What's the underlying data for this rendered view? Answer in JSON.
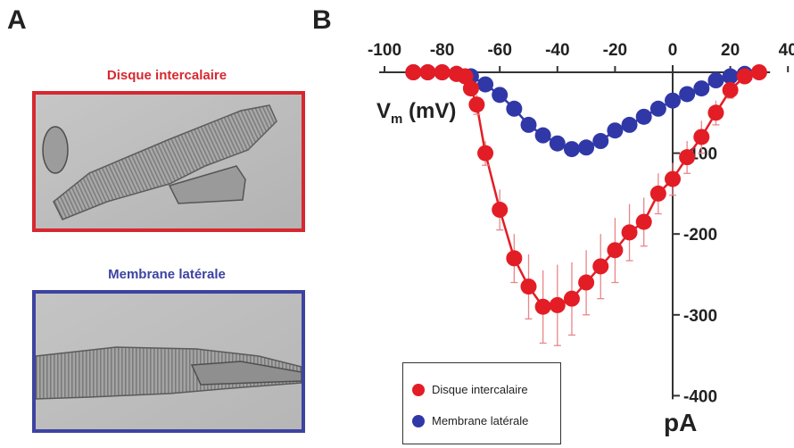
{
  "panels": {
    "a_letter": "A",
    "b_letter": "B"
  },
  "panel_a": {
    "top_caption": "Disque intercalaire",
    "bottom_caption": "Membrane latérale",
    "top_color": "#d7282f",
    "bottom_color": "#3d43a1"
  },
  "chart_data": {
    "type": "scatter",
    "x_tick_labels": [
      "-100",
      "-80",
      "-60",
      "-40",
      "-20",
      "0",
      "20",
      "40"
    ],
    "y_tick_labels": [
      "-100",
      "-200",
      "-300",
      "-400"
    ],
    "x_ticks": [
      -100,
      -80,
      -60,
      -40,
      -20,
      0,
      20,
      40
    ],
    "y_ticks": [
      -100,
      -200,
      -300,
      -400
    ],
    "xlabel_main": "V",
    "xlabel_sub": "m",
    "xlabel_unit": " (mV)",
    "ylabel": "pA",
    "xlim": [
      -100,
      40
    ],
    "ylim": [
      -400,
      0
    ],
    "series": [
      {
        "name": "Disque intercalaire",
        "color": "#e31d25",
        "points": [
          [
            -90,
            0
          ],
          [
            -85,
            0
          ],
          [
            -80,
            0
          ],
          [
            -75,
            -2
          ],
          [
            -72,
            -5
          ],
          [
            -70,
            -20
          ],
          [
            -68,
            -40
          ],
          [
            -65,
            -100
          ],
          [
            -60,
            -170
          ],
          [
            -55,
            -230
          ],
          [
            -50,
            -265
          ],
          [
            -45,
            -290
          ],
          [
            -40,
            -288
          ],
          [
            -35,
            -280
          ],
          [
            -30,
            -260
          ],
          [
            -25,
            -240
          ],
          [
            -20,
            -220
          ],
          [
            -15,
            -198
          ],
          [
            -10,
            -185
          ],
          [
            -5,
            -150
          ],
          [
            0,
            -132
          ],
          [
            5,
            -105
          ],
          [
            10,
            -80
          ],
          [
            15,
            -50
          ],
          [
            20,
            -22
          ],
          [
            25,
            -5
          ],
          [
            30,
            0
          ]
        ],
        "error": [
          0,
          0,
          0,
          2,
          3,
          6,
          12,
          15,
          25,
          30,
          40,
          45,
          50,
          45,
          40,
          40,
          40,
          35,
          30,
          25,
          20,
          20,
          20,
          15,
          10,
          5,
          3
        ]
      },
      {
        "name": "Membrane latérale",
        "color": "#3038a8",
        "points": [
          [
            -90,
            0
          ],
          [
            -85,
            0
          ],
          [
            -80,
            0
          ],
          [
            -75,
            -2
          ],
          [
            -70,
            -5
          ],
          [
            -65,
            -15
          ],
          [
            -60,
            -28
          ],
          [
            -55,
            -45
          ],
          [
            -50,
            -65
          ],
          [
            -45,
            -78
          ],
          [
            -40,
            -88
          ],
          [
            -35,
            -95
          ],
          [
            -30,
            -93
          ],
          [
            -25,
            -85
          ],
          [
            -20,
            -72
          ],
          [
            -15,
            -65
          ],
          [
            -10,
            -55
          ],
          [
            -5,
            -45
          ],
          [
            0,
            -35
          ],
          [
            5,
            -27
          ],
          [
            10,
            -20
          ],
          [
            15,
            -10
          ],
          [
            20,
            -5
          ],
          [
            25,
            -2
          ]
        ],
        "error": []
      }
    ]
  }
}
